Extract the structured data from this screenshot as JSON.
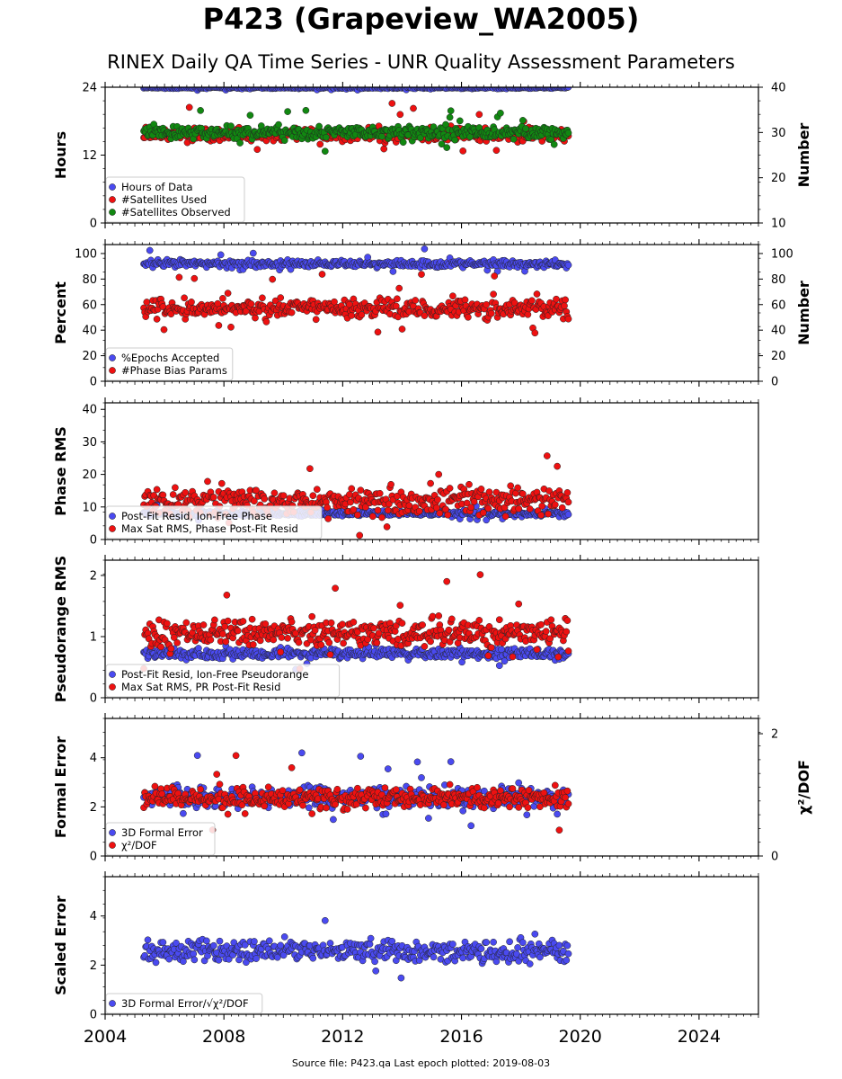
{
  "title": "P423 (Grapeview_WA2005)",
  "subtitle": "RINEX Daily QA Time Series - UNR Quality Assessment Parameters",
  "footer": "Source file: P423.qa Last epoch plotted: 2019-08-03",
  "colors": {
    "blue": "#4a4af0",
    "red": "#ee1111",
    "green": "#118811",
    "edge": "#222222"
  },
  "chart_data": [
    {
      "type": "scatter",
      "xlim": [
        2004,
        2026
      ],
      "xticks": [
        "2004",
        "2008",
        "2012",
        "2016",
        "2020",
        "2024"
      ],
      "ylabel": "Hours",
      "ylim": [
        0,
        24
      ],
      "yticks": [
        "0",
        "12",
        "24"
      ],
      "y2label": "Number",
      "y2lim": [
        10,
        40
      ],
      "y2ticks": [
        "10",
        "20",
        "30",
        "40"
      ],
      "legend": "lower-left",
      "series": [
        {
          "name": "Hours of Data",
          "color": "blue",
          "axis": "left",
          "x_range": [
            2005.3,
            2019.6
          ],
          "baseline": 23.9,
          "spread": 0.1
        },
        {
          "name": "#Satellites Used",
          "color": "red",
          "axis": "right",
          "x_range": [
            2005.3,
            2019.6
          ],
          "baseline": 29.5,
          "spread": 1.0
        },
        {
          "name": "#Satellites Observed",
          "color": "green",
          "axis": "right",
          "x_range": [
            2005.3,
            2019.6
          ],
          "baseline": 30.0,
          "spread": 1.0
        }
      ]
    },
    {
      "type": "scatter",
      "xlim": [
        2004,
        2026
      ],
      "xticks": [
        "2004",
        "2008",
        "2012",
        "2016",
        "2020",
        "2024"
      ],
      "ylabel": "Percent",
      "ylim": [
        0,
        107
      ],
      "yticks": [
        "0",
        "20",
        "40",
        "60",
        "80",
        "100"
      ],
      "y2label": "Number",
      "y2lim": [
        0,
        107
      ],
      "y2ticks": [
        "0",
        "20",
        "40",
        "60",
        "80",
        "100"
      ],
      "legend": "lower-left",
      "series": [
        {
          "name": "%Epochs Accepted",
          "color": "blue",
          "axis": "left",
          "x_range": [
            2005.3,
            2019.6
          ],
          "baseline": 92,
          "spread": 2.0
        },
        {
          "name": "#Phase Bias Params",
          "color": "red",
          "axis": "right",
          "x_range": [
            2005.3,
            2019.6
          ],
          "baseline": 57,
          "spread": 5.0
        }
      ]
    },
    {
      "type": "scatter",
      "xlim": [
        2004,
        2026
      ],
      "xticks": [
        "2004",
        "2008",
        "2012",
        "2016",
        "2020",
        "2024"
      ],
      "ylabel": "Phase RMS",
      "ylim": [
        0,
        42
      ],
      "yticks": [
        "0",
        "10",
        "20",
        "30",
        "40"
      ],
      "legend": "lower-left",
      "series": [
        {
          "name": "Post-Fit Resid, Ion-Free Phase",
          "color": "blue",
          "axis": "left",
          "x_range": [
            2005.3,
            2019.6
          ],
          "baseline": 8,
          "spread": 0.6
        },
        {
          "name": "Max Sat RMS, Phase Post-Fit Resid",
          "color": "red",
          "axis": "left",
          "x_range": [
            2005.3,
            2019.6
          ],
          "baseline": 12,
          "spread": 3.0
        }
      ]
    },
    {
      "type": "scatter",
      "xlim": [
        2004,
        2026
      ],
      "xticks": [
        "2004",
        "2008",
        "2012",
        "2016",
        "2020",
        "2024"
      ],
      "ylabel": "Pseudorange RMS",
      "ylim": [
        0,
        2.25
      ],
      "yticks": [
        "0",
        "1",
        "2"
      ],
      "legend": "lower-left",
      "series": [
        {
          "name": "Post-Fit Resid, Ion-Free Pseudorange",
          "color": "blue",
          "axis": "left",
          "x_range": [
            2005.3,
            2019.6
          ],
          "baseline": 0.72,
          "spread": 0.06
        },
        {
          "name": "Max Sat RMS, PR Post-Fit Resid",
          "color": "red",
          "axis": "left",
          "x_range": [
            2005.3,
            2019.6
          ],
          "baseline": 1.05,
          "spread": 0.15
        }
      ]
    },
    {
      "type": "scatter",
      "xlim": [
        2004,
        2026
      ],
      "xticks": [
        "2004",
        "2008",
        "2012",
        "2016",
        "2020",
        "2024"
      ],
      "ylabel": "Formal Error",
      "ylim": [
        0,
        5.6
      ],
      "yticks": [
        "0",
        "2",
        "4"
      ],
      "y2label": "χ²/DOF",
      "y2lim": [
        0,
        2.25
      ],
      "y2ticks": [
        "0",
        "2"
      ],
      "legend": "lower-left",
      "series": [
        {
          "name": "3D Formal Error",
          "color": "blue",
          "axis": "left",
          "x_range": [
            2005.3,
            2019.6
          ],
          "baseline": 2.4,
          "spread": 0.3
        },
        {
          "name": "χ²/DOF",
          "color": "red",
          "axis": "right",
          "x_range": [
            2005.3,
            2019.6
          ],
          "baseline": 0.95,
          "spread": 0.12
        }
      ]
    },
    {
      "type": "scatter",
      "xlim": [
        2004,
        2026
      ],
      "xticks": [
        "2004",
        "2008",
        "2012",
        "2016",
        "2020",
        "2024"
      ],
      "ylabel": "Scaled Error",
      "ylim": [
        0,
        5.6
      ],
      "yticks": [
        "0",
        "2",
        "4"
      ],
      "legend": "lower-left",
      "series": [
        {
          "name": "3D Formal Error/√χ²/DOF",
          "color": "blue",
          "axis": "left",
          "x_range": [
            2005.3,
            2019.6
          ],
          "baseline": 2.6,
          "spread": 0.3
        }
      ]
    }
  ]
}
